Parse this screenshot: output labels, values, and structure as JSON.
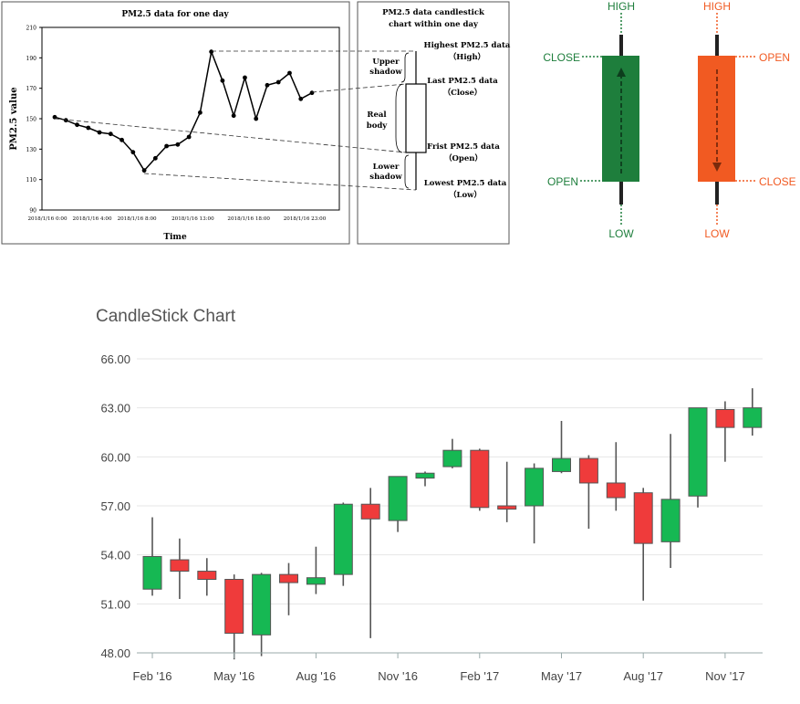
{
  "chart_data": [
    {
      "type": "line",
      "title": "PM2.5 data for one day",
      "xlabel": "Time",
      "ylabel": "PM2.5 value",
      "ylim": [
        90,
        210
      ],
      "yticks": [
        90,
        110,
        130,
        150,
        170,
        190,
        210
      ],
      "xtick_labels": [
        "2018/1/16 0:00",
        "2018/1/16 4:00",
        "2018/1/16 8:00",
        "2018/1/16 13:00",
        "2018/1/16 18:00",
        "2018/1/16 23:00"
      ],
      "x": [
        0,
        1,
        2,
        3,
        4,
        5,
        6,
        7,
        8,
        9,
        10,
        11,
        12,
        13,
        14,
        15,
        16,
        17,
        18,
        19,
        20,
        21,
        22,
        23
      ],
      "y": [
        151,
        149,
        146,
        144,
        141,
        140,
        136,
        128,
        116,
        124,
        132,
        133,
        138,
        154,
        194,
        175,
        152,
        177,
        150,
        172,
        174,
        180,
        163,
        167
      ]
    },
    {
      "type": "diagram",
      "title_line1": "PM2.5 data candlestick",
      "title_line2": "chart within one day",
      "shadow_labels": {
        "upper1": "Upper",
        "upper2": "shadow",
        "real1": "Real",
        "real2": "body",
        "lower1": "Lower",
        "lower2": "shadow"
      },
      "labels": {
        "high1": "Highest PM2.5 data",
        "high2": "（High）",
        "close1": "Last PM2.5 data",
        "close2": "（Close）",
        "open1": "Frist PM2.5 data",
        "open2": "（Open）",
        "low1": "Lowest PM2.5 data",
        "low2": "（Low）"
      }
    },
    {
      "type": "diagram",
      "bull": {
        "high": "HIGH",
        "close": "CLOSE",
        "open": "OPEN",
        "low": "LOW",
        "color": "#1e7e3c"
      },
      "bear": {
        "high": "HIGH",
        "open": "OPEN",
        "close": "CLOSE",
        "low": "LOW",
        "color": "#f15a22"
      }
    },
    {
      "type": "candlestick",
      "title": "CandleStick Chart",
      "ylim": [
        48,
        66
      ],
      "yticks": [
        "48.00",
        "51.00",
        "54.00",
        "57.00",
        "60.00",
        "63.00",
        "66.00"
      ],
      "xtick_labels": [
        "Feb '16",
        "May '16",
        "Aug '16",
        "Nov '16",
        "Feb '17",
        "May '17",
        "Aug '17",
        "Nov '17"
      ],
      "colors": {
        "up": "#16b853",
        "down": "#ef3b3b"
      },
      "candles": [
        {
          "open": 51.9,
          "high": 56.3,
          "low": 51.5,
          "close": 53.9
        },
        {
          "open": 53.7,
          "high": 55.0,
          "low": 51.3,
          "close": 53.0
        },
        {
          "open": 53.0,
          "high": 53.8,
          "low": 51.5,
          "close": 52.5
        },
        {
          "open": 52.5,
          "high": 52.8,
          "low": 47.6,
          "close": 49.2
        },
        {
          "open": 49.1,
          "high": 52.9,
          "low": 47.8,
          "close": 52.8
        },
        {
          "open": 52.8,
          "high": 53.5,
          "low": 50.3,
          "close": 52.3
        },
        {
          "open": 52.2,
          "high": 54.5,
          "low": 51.6,
          "close": 52.6
        },
        {
          "open": 52.8,
          "high": 57.2,
          "low": 52.1,
          "close": 57.1
        },
        {
          "open": 57.1,
          "high": 58.1,
          "low": 48.9,
          "close": 56.2
        },
        {
          "open": 56.1,
          "high": 58.8,
          "low": 55.4,
          "close": 58.8
        },
        {
          "open": 58.7,
          "high": 59.1,
          "low": 58.2,
          "close": 59.0
        },
        {
          "open": 59.4,
          "high": 61.1,
          "low": 59.3,
          "close": 60.4
        },
        {
          "open": 60.4,
          "high": 60.5,
          "low": 56.7,
          "close": 56.9
        },
        {
          "open": 57.0,
          "high": 59.7,
          "low": 56.0,
          "close": 56.8
        },
        {
          "open": 57.0,
          "high": 59.6,
          "low": 54.7,
          "close": 59.3
        },
        {
          "open": 59.1,
          "high": 62.2,
          "low": 59.0,
          "close": 59.9
        },
        {
          "open": 59.9,
          "high": 60.1,
          "low": 55.6,
          "close": 58.4
        },
        {
          "open": 58.4,
          "high": 60.9,
          "low": 56.7,
          "close": 57.5
        },
        {
          "open": 57.8,
          "high": 58.1,
          "low": 51.2,
          "close": 54.7
        },
        {
          "open": 54.8,
          "high": 61.4,
          "low": 53.2,
          "close": 57.4
        },
        {
          "open": 57.6,
          "high": 63.0,
          "low": 56.9,
          "close": 63.0
        },
        {
          "open": 62.9,
          "high": 63.4,
          "low": 59.7,
          "close": 61.8
        },
        {
          "open": 61.8,
          "high": 64.2,
          "low": 61.3,
          "close": 63.0
        }
      ]
    }
  ]
}
